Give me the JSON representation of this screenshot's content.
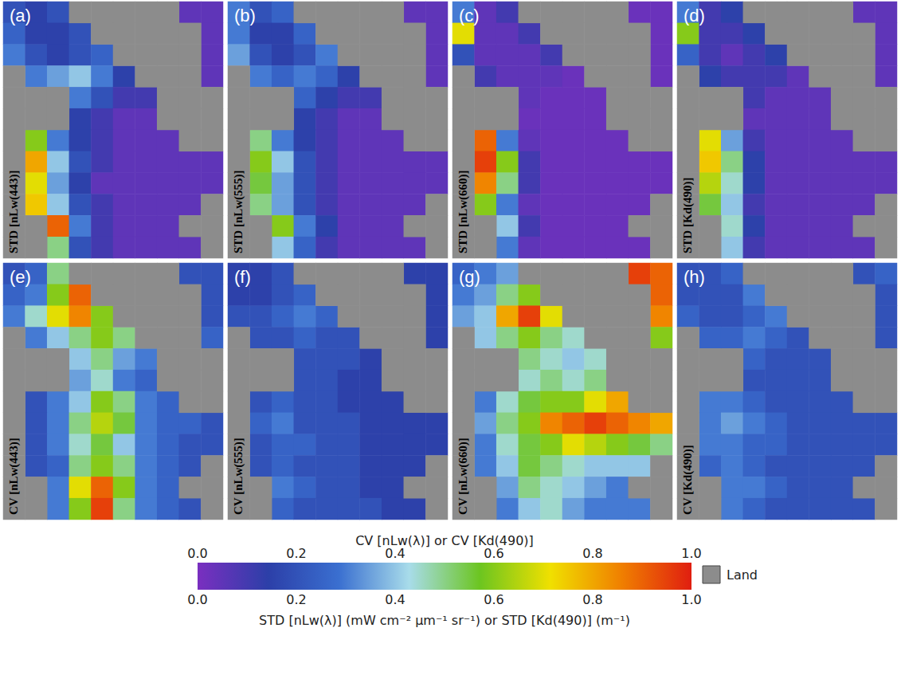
{
  "chart_data": [
    {
      "type": "heatmap",
      "label": "(a)",
      "title": "STD [nLw(443)]",
      "cells": [
        [
          0.2,
          0.15,
          0.2,
          null,
          null,
          null,
          null,
          null,
          0.05,
          0.05
        ],
        [
          0.25,
          0.15,
          0.15,
          0.2,
          null,
          null,
          null,
          null,
          null,
          0.05
        ],
        [
          0.3,
          0.2,
          0.15,
          0.2,
          0.25,
          null,
          null,
          null,
          null,
          0.05
        ],
        [
          null,
          0.3,
          0.35,
          0.4,
          0.3,
          0.15,
          null,
          null,
          null,
          0.05
        ],
        [
          null,
          null,
          null,
          0.3,
          0.2,
          0.1,
          0.1,
          null,
          null,
          null
        ],
        [
          null,
          null,
          null,
          0.15,
          0.1,
          0.05,
          0.05,
          null,
          null,
          null
        ],
        [
          null,
          0.6,
          0.3,
          0.15,
          0.1,
          0.05,
          0.05,
          0.05,
          null,
          null
        ],
        [
          null,
          0.8,
          0.4,
          0.2,
          0.1,
          0.05,
          0.05,
          0.05,
          0.05,
          0.05
        ],
        [
          null,
          0.7,
          0.35,
          0.15,
          0.05,
          0.05,
          0.05,
          0.05,
          0.05,
          0.05
        ],
        [
          null,
          0.75,
          0.4,
          0.2,
          0.1,
          0.05,
          0.05,
          0.05,
          0.05,
          null
        ],
        [
          null,
          null,
          0.9,
          0.3,
          0.1,
          0.05,
          0.05,
          0.05,
          null,
          null
        ],
        [
          null,
          null,
          0.5,
          0.2,
          0.1,
          0.05,
          0.05,
          0.05,
          0.05,
          null
        ]
      ]
    },
    {
      "type": "heatmap",
      "label": "(b)",
      "title": "STD [nLw(555)]",
      "cells": [
        [
          0.3,
          0.2,
          0.25,
          null,
          null,
          null,
          null,
          null,
          0.05,
          0.05
        ],
        [
          0.3,
          0.15,
          0.15,
          0.25,
          null,
          null,
          null,
          null,
          null,
          0.05
        ],
        [
          0.35,
          0.2,
          0.15,
          0.2,
          0.3,
          null,
          null,
          null,
          null,
          0.05
        ],
        [
          null,
          0.3,
          0.25,
          0.3,
          0.25,
          0.15,
          null,
          null,
          null,
          0.05
        ],
        [
          null,
          null,
          null,
          0.25,
          0.15,
          0.1,
          0.1,
          null,
          null,
          null
        ],
        [
          null,
          null,
          null,
          0.15,
          0.1,
          0.05,
          0.05,
          null,
          null,
          null
        ],
        [
          null,
          0.5,
          0.3,
          0.15,
          0.1,
          0.05,
          0.05,
          0.05,
          null,
          null
        ],
        [
          null,
          0.6,
          0.4,
          0.2,
          0.1,
          0.05,
          0.05,
          0.05,
          0.05,
          0.05
        ],
        [
          null,
          0.55,
          0.35,
          0.2,
          0.1,
          0.05,
          0.05,
          0.05,
          0.05,
          0.05
        ],
        [
          null,
          0.5,
          0.35,
          0.2,
          0.1,
          0.05,
          0.05,
          0.05,
          0.05,
          null
        ],
        [
          null,
          null,
          0.6,
          0.3,
          0.15,
          0.05,
          0.05,
          0.05,
          null,
          null
        ],
        [
          null,
          null,
          0.4,
          0.25,
          0.1,
          0.05,
          0.05,
          0.05,
          0.05,
          null
        ]
      ]
    },
    {
      "type": "heatmap",
      "label": "(c)",
      "title": "STD [nLw(660)]",
      "cells": [
        [
          0.3,
          0.05,
          0.1,
          null,
          null,
          null,
          null,
          null,
          0.03,
          0.03
        ],
        [
          0.7,
          0.05,
          0.05,
          0.1,
          null,
          null,
          null,
          null,
          null,
          0.03
        ],
        [
          0.2,
          0.05,
          0.05,
          0.05,
          0.1,
          null,
          null,
          null,
          null,
          0.03
        ],
        [
          null,
          0.1,
          0.05,
          0.05,
          0.05,
          0.03,
          null,
          null,
          null,
          0.03
        ],
        [
          null,
          null,
          null,
          0.05,
          0.03,
          0.03,
          0.03,
          null,
          null,
          null
        ],
        [
          null,
          null,
          null,
          0.03,
          0.03,
          0.03,
          0.03,
          null,
          null,
          null
        ],
        [
          null,
          0.9,
          0.3,
          0.05,
          0.03,
          0.03,
          0.03,
          0.03,
          null,
          null
        ],
        [
          null,
          0.95,
          0.6,
          0.1,
          0.03,
          0.03,
          0.03,
          0.03,
          0.03,
          0.03
        ],
        [
          null,
          0.85,
          0.5,
          0.1,
          0.03,
          0.03,
          0.03,
          0.03,
          0.03,
          0.03
        ],
        [
          null,
          0.6,
          0.3,
          0.05,
          0.03,
          0.03,
          0.03,
          0.03,
          0.03,
          null
        ],
        [
          null,
          null,
          0.4,
          0.1,
          0.03,
          0.03,
          0.03,
          0.03,
          null,
          null
        ],
        [
          null,
          null,
          0.3,
          0.05,
          0.03,
          0.03,
          0.03,
          0.03,
          0.03,
          null
        ]
      ]
    },
    {
      "type": "heatmap",
      "label": "(d)",
      "title": "STD [Kd(490)]",
      "cells": [
        [
          0.3,
          0.1,
          0.15,
          null,
          null,
          null,
          null,
          null,
          0.05,
          0.05
        ],
        [
          0.6,
          0.1,
          0.1,
          0.15,
          null,
          null,
          null,
          null,
          null,
          0.05
        ],
        [
          0.25,
          0.1,
          0.05,
          0.1,
          0.15,
          null,
          null,
          null,
          null,
          0.05
        ],
        [
          null,
          0.15,
          0.1,
          0.1,
          0.1,
          0.05,
          null,
          null,
          null,
          0.05
        ],
        [
          null,
          null,
          null,
          0.1,
          0.05,
          0.05,
          0.05,
          null,
          null,
          null
        ],
        [
          null,
          null,
          null,
          0.05,
          0.05,
          0.05,
          0.05,
          null,
          null,
          null
        ],
        [
          null,
          0.7,
          0.35,
          0.1,
          0.05,
          0.05,
          0.05,
          0.05,
          null,
          null
        ],
        [
          null,
          0.75,
          0.5,
          0.15,
          0.05,
          0.05,
          0.05,
          0.05,
          0.05,
          0.05
        ],
        [
          null,
          0.65,
          0.45,
          0.15,
          0.05,
          0.05,
          0.05,
          0.05,
          0.05,
          0.05
        ],
        [
          null,
          0.55,
          0.4,
          0.1,
          0.05,
          0.05,
          0.05,
          0.05,
          0.05,
          null
        ],
        [
          null,
          null,
          0.45,
          0.15,
          0.05,
          0.05,
          0.05,
          0.05,
          null,
          null
        ],
        [
          null,
          null,
          0.4,
          0.1,
          0.05,
          0.05,
          0.05,
          0.05,
          0.05,
          null
        ]
      ]
    },
    {
      "type": "heatmap",
      "label": "(e)",
      "title": "CV [nLw(443)]",
      "cells": [
        [
          0.2,
          0.25,
          0.5,
          null,
          null,
          null,
          null,
          null,
          0.2,
          0.2
        ],
        [
          0.25,
          0.3,
          0.6,
          0.9,
          null,
          null,
          null,
          null,
          null,
          0.2
        ],
        [
          0.3,
          0.45,
          0.7,
          0.85,
          0.6,
          null,
          null,
          null,
          null,
          0.2
        ],
        [
          null,
          0.3,
          0.4,
          0.5,
          0.6,
          0.5,
          null,
          null,
          null,
          0.25
        ],
        [
          null,
          null,
          null,
          0.4,
          0.5,
          0.35,
          0.3,
          null,
          null,
          null
        ],
        [
          null,
          null,
          null,
          0.35,
          0.45,
          0.3,
          0.25,
          null,
          null,
          null
        ],
        [
          null,
          0.2,
          0.3,
          0.4,
          0.6,
          0.5,
          0.3,
          0.25,
          null,
          null
        ],
        [
          null,
          0.2,
          0.3,
          0.5,
          0.65,
          0.55,
          0.3,
          0.25,
          0.25,
          0.2
        ],
        [
          null,
          0.2,
          0.3,
          0.45,
          0.55,
          0.4,
          0.3,
          0.25,
          0.2,
          0.2
        ],
        [
          null,
          0.2,
          0.25,
          0.5,
          0.6,
          0.5,
          0.3,
          0.25,
          0.2,
          null
        ],
        [
          null,
          null,
          0.3,
          0.7,
          0.9,
          0.6,
          0.3,
          0.25,
          null,
          null
        ],
        [
          null,
          null,
          0.3,
          0.6,
          0.95,
          0.5,
          0.3,
          0.25,
          0.2,
          null
        ]
      ]
    },
    {
      "type": "heatmap",
      "label": "(f)",
      "title": "CV [nLw(555)]",
      "cells": [
        [
          0.15,
          0.15,
          0.2,
          null,
          null,
          null,
          null,
          null,
          0.15,
          0.15
        ],
        [
          0.15,
          0.15,
          0.2,
          0.25,
          null,
          null,
          null,
          null,
          null,
          0.15
        ],
        [
          0.2,
          0.2,
          0.25,
          0.3,
          0.25,
          null,
          null,
          null,
          null,
          0.15
        ],
        [
          null,
          0.2,
          0.2,
          0.25,
          0.2,
          0.2,
          null,
          null,
          null,
          0.15
        ],
        [
          null,
          null,
          null,
          0.2,
          0.2,
          0.2,
          0.15,
          null,
          null,
          null
        ],
        [
          null,
          null,
          null,
          0.2,
          0.2,
          0.15,
          0.15,
          null,
          null,
          null
        ],
        [
          null,
          0.2,
          0.25,
          0.2,
          0.2,
          0.15,
          0.15,
          0.15,
          null,
          null
        ],
        [
          null,
          0.25,
          0.3,
          0.2,
          0.2,
          0.2,
          0.15,
          0.15,
          0.15,
          0.15
        ],
        [
          null,
          0.2,
          0.25,
          0.25,
          0.2,
          0.2,
          0.15,
          0.15,
          0.15,
          0.15
        ],
        [
          null,
          0.2,
          0.25,
          0.2,
          0.2,
          0.2,
          0.15,
          0.15,
          0.15,
          null
        ],
        [
          null,
          null,
          0.3,
          0.25,
          0.2,
          0.2,
          0.15,
          0.15,
          null,
          null
        ],
        [
          null,
          null,
          0.25,
          0.2,
          0.2,
          0.2,
          0.2,
          0.15,
          0.15,
          null
        ]
      ]
    },
    {
      "type": "heatmap",
      "label": "(g)",
      "title": "CV [nLw(660)]",
      "cells": [
        [
          0.25,
          0.3,
          0.35,
          null,
          null,
          null,
          null,
          null,
          0.95,
          0.9
        ],
        [
          0.3,
          0.35,
          0.5,
          0.6,
          null,
          null,
          null,
          null,
          null,
          0.9
        ],
        [
          0.35,
          0.4,
          0.8,
          0.95,
          0.7,
          null,
          null,
          null,
          null,
          0.85
        ],
        [
          null,
          0.4,
          0.5,
          0.6,
          0.5,
          0.45,
          null,
          null,
          null,
          0.6
        ],
        [
          null,
          null,
          null,
          0.5,
          0.45,
          0.4,
          0.45,
          null,
          null,
          null
        ],
        [
          null,
          null,
          null,
          0.45,
          0.5,
          0.45,
          0.5,
          null,
          null,
          null
        ],
        [
          null,
          0.3,
          0.45,
          0.55,
          0.6,
          0.6,
          0.7,
          0.8,
          null,
          null
        ],
        [
          null,
          0.35,
          0.5,
          0.6,
          0.85,
          0.9,
          0.95,
          0.9,
          0.85,
          0.8
        ],
        [
          null,
          0.3,
          0.45,
          0.55,
          0.6,
          0.7,
          0.65,
          0.6,
          0.55,
          0.5
        ],
        [
          null,
          0.3,
          0.4,
          0.55,
          0.5,
          0.45,
          0.4,
          0.4,
          0.4,
          null
        ],
        [
          null,
          null,
          0.35,
          0.5,
          0.45,
          0.4,
          0.35,
          0.3,
          null,
          null
        ],
        [
          null,
          null,
          0.3,
          0.4,
          0.45,
          0.35,
          0.3,
          0.3,
          0.3,
          null
        ]
      ]
    },
    {
      "type": "heatmap",
      "label": "(h)",
      "title": "CV [Kd(490)]",
      "cells": [
        [
          0.2,
          0.2,
          0.25,
          null,
          null,
          null,
          null,
          null,
          0.2,
          0.25
        ],
        [
          0.2,
          0.2,
          0.2,
          0.3,
          null,
          null,
          null,
          null,
          null,
          0.2
        ],
        [
          0.25,
          0.2,
          0.2,
          0.25,
          0.3,
          null,
          null,
          null,
          null,
          0.2
        ],
        [
          null,
          0.25,
          0.25,
          0.3,
          0.25,
          0.2,
          null,
          null,
          null,
          0.2
        ],
        [
          null,
          null,
          null,
          0.25,
          0.2,
          0.2,
          0.2,
          null,
          null,
          null
        ],
        [
          null,
          null,
          null,
          0.2,
          0.2,
          0.2,
          0.2,
          null,
          null,
          null
        ],
        [
          null,
          0.3,
          0.3,
          0.25,
          0.2,
          0.2,
          0.2,
          0.2,
          null,
          null
        ],
        [
          null,
          0.3,
          0.35,
          0.3,
          0.25,
          0.2,
          0.2,
          0.2,
          0.2,
          0.2
        ],
        [
          null,
          0.3,
          0.3,
          0.25,
          0.25,
          0.2,
          0.2,
          0.2,
          0.2,
          0.2
        ],
        [
          null,
          0.25,
          0.3,
          0.25,
          0.2,
          0.2,
          0.2,
          0.2,
          0.2,
          null
        ],
        [
          null,
          null,
          0.3,
          0.3,
          0.25,
          0.2,
          0.2,
          0.2,
          null,
          null
        ],
        [
          null,
          null,
          0.3,
          0.25,
          0.2,
          0.2,
          0.2,
          0.2,
          0.2,
          null
        ]
      ]
    }
  ],
  "colorbar": {
    "title_top": "CV [nLw(λ)] or CV [Kd(490)]",
    "title_bottom": "STD [nLw(λ)] (mW cm⁻² µm⁻¹ sr⁻¹) or STD [Kd(490)] (m⁻¹)",
    "range": [
      0,
      1
    ],
    "ticks": [
      {
        "value": 0,
        "label": "0.0"
      },
      0.2,
      0.4,
      0.6,
      0.8,
      {
        "value": 1,
        "label": "1.0"
      }
    ],
    "colors": [
      "#7a2fc0",
      "#2c3fa8",
      "#3a6fd0",
      "#a8dcea",
      "#6cc520",
      "#f0e000",
      "#f08000",
      "#e01e10"
    ]
  },
  "land": {
    "label": "Land",
    "color": "#8c8c8c"
  }
}
